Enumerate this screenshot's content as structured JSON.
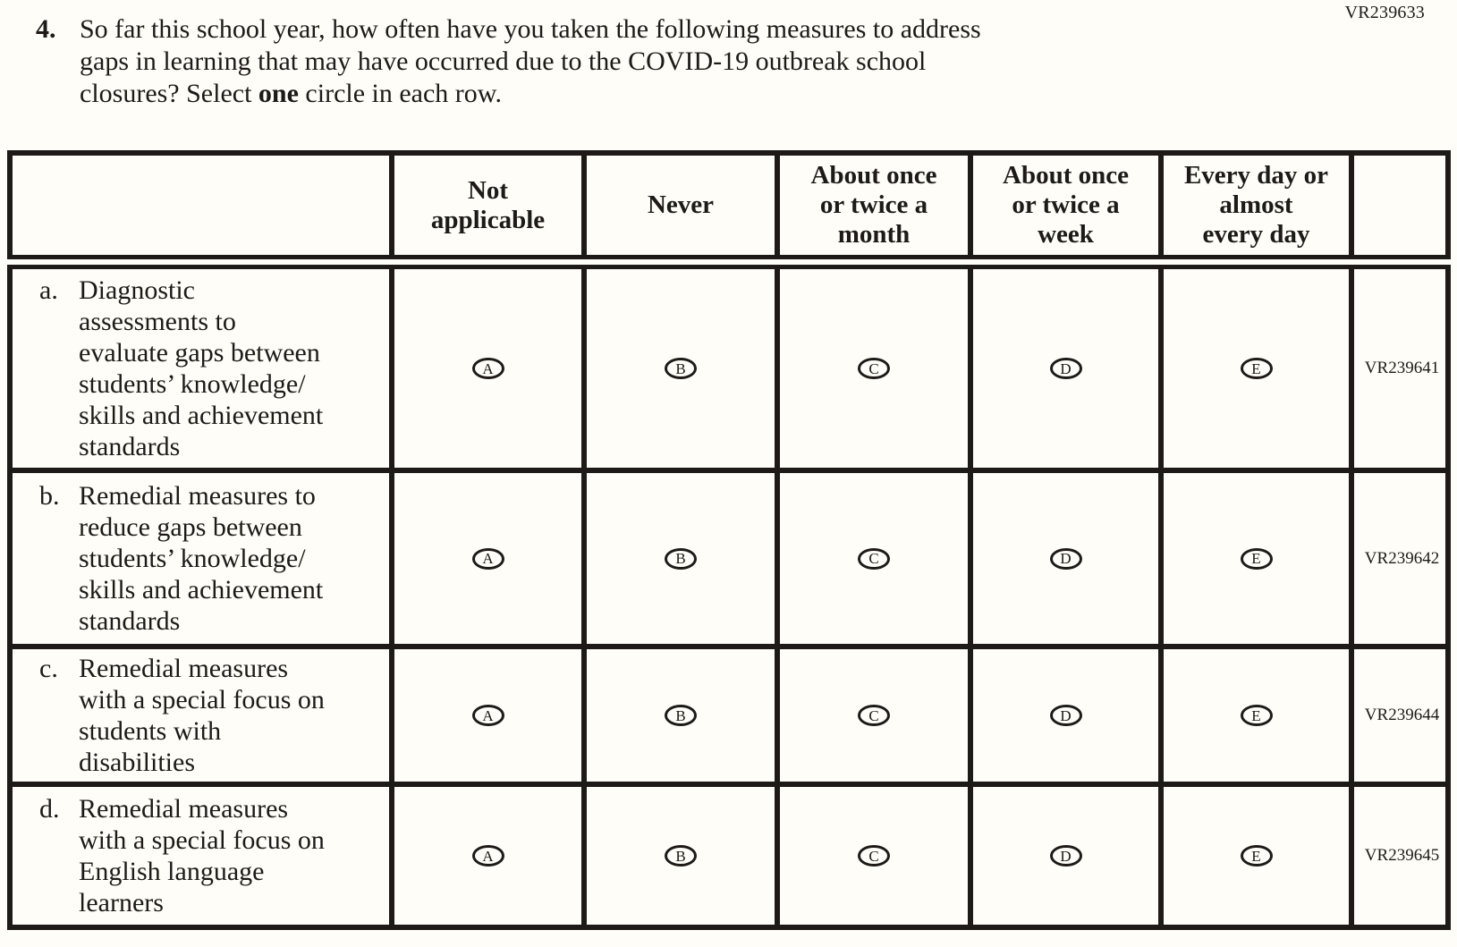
{
  "page": {
    "code_top_right": "VR239633"
  },
  "question": {
    "number": "4.",
    "line1": "So far this school year, how often have you taken the following measures to address",
    "line2": "gaps in learning that may have occurred due to the COVID-19 outbreak school",
    "line3_pre": "closures? Select ",
    "line3_bold": "one",
    "line3_post": " circle in each row."
  },
  "table": {
    "header_cols": [
      {
        "lines": []
      },
      {
        "lines": [
          "Not",
          "applicable"
        ]
      },
      {
        "lines": [
          "Never"
        ]
      },
      {
        "lines": [
          "About once",
          "or twice a",
          "month"
        ]
      },
      {
        "lines": [
          "About once",
          "or twice a",
          "week"
        ]
      },
      {
        "lines": [
          "Every day or",
          "almost",
          "every day"
        ]
      },
      {
        "lines": []
      }
    ],
    "options": [
      "A",
      "B",
      "C",
      "D",
      "E"
    ],
    "rows": [
      {
        "letter": "a.",
        "lines": [
          "Diagnostic",
          "assessments to",
          "evaluate gaps between",
          "students’ knowledge/",
          "skills and achievement",
          "standards"
        ],
        "code": "VR239641"
      },
      {
        "letter": "b.",
        "lines": [
          "Remedial measures to",
          "reduce gaps between",
          "students’ knowledge/",
          "skills and achievement",
          "standards"
        ],
        "code": "VR239642"
      },
      {
        "letter": "c.",
        "lines": [
          "Remedial measures",
          "with a special focus on",
          "students with",
          "disabilities"
        ],
        "code": "VR239644"
      },
      {
        "letter": "d.",
        "lines": [
          "Remedial measures",
          "with a special focus on",
          "English language",
          "learners"
        ],
        "code": "VR239645"
      }
    ]
  }
}
